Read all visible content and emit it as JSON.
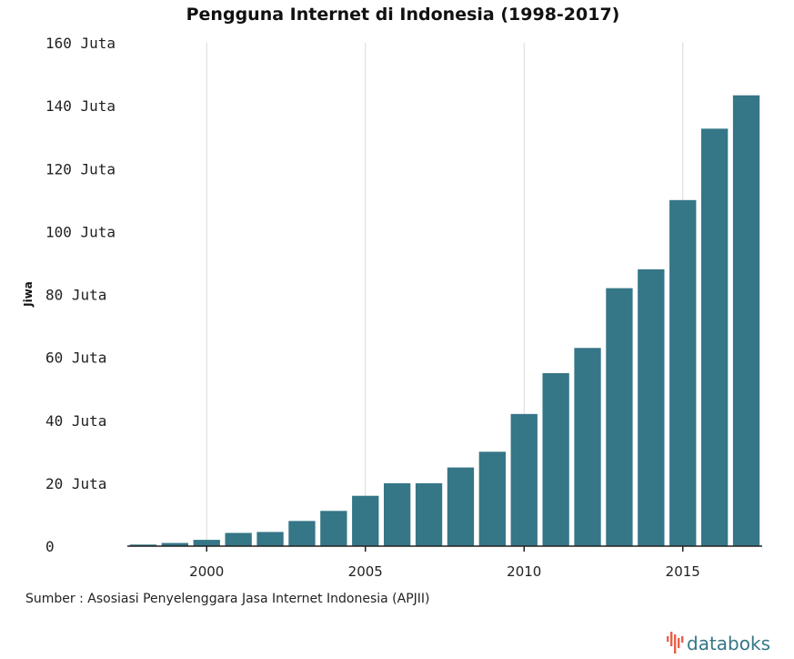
{
  "chart_data": {
    "type": "bar",
    "title": "Pengguna Internet di Indonesia (1998-2017)",
    "ylabel": "Jiwa",
    "xlabel": "",
    "x": [
      1998,
      1999,
      2000,
      2001,
      2002,
      2003,
      2004,
      2005,
      2006,
      2007,
      2008,
      2009,
      2010,
      2011,
      2012,
      2013,
      2014,
      2015,
      2016,
      2017
    ],
    "values": [
      0.5,
      1,
      2,
      4.2,
      4.5,
      8,
      11.2,
      16,
      20,
      20,
      25,
      30,
      42,
      55,
      63,
      82,
      88,
      110,
      132.7,
      143.3
    ],
    "unit": "Juta",
    "ylim": [
      0,
      160
    ],
    "xlim": [
      1997.5,
      2017.5
    ],
    "yticks": [
      0,
      20,
      40,
      60,
      80,
      100,
      120,
      140,
      160
    ],
    "ytick_labels": [
      "0",
      "20 Juta",
      "40 Juta",
      "60 Juta",
      "80 Juta",
      "100 Juta",
      "120 Juta",
      "140 Juta",
      "160 Juta"
    ],
    "xticks": [
      2000,
      2005,
      2010,
      2015
    ],
    "xtick_labels": [
      "2000",
      "2005",
      "2010",
      "2015"
    ],
    "grid": "vertical",
    "bar_color": "#357687"
  },
  "source": "Sumber : Asosiasi Penyelenggara Jasa Internet Indonesia (APJII)",
  "brand": {
    "name": "databoks",
    "color": "#357687",
    "icon_color": "#e8604c"
  }
}
